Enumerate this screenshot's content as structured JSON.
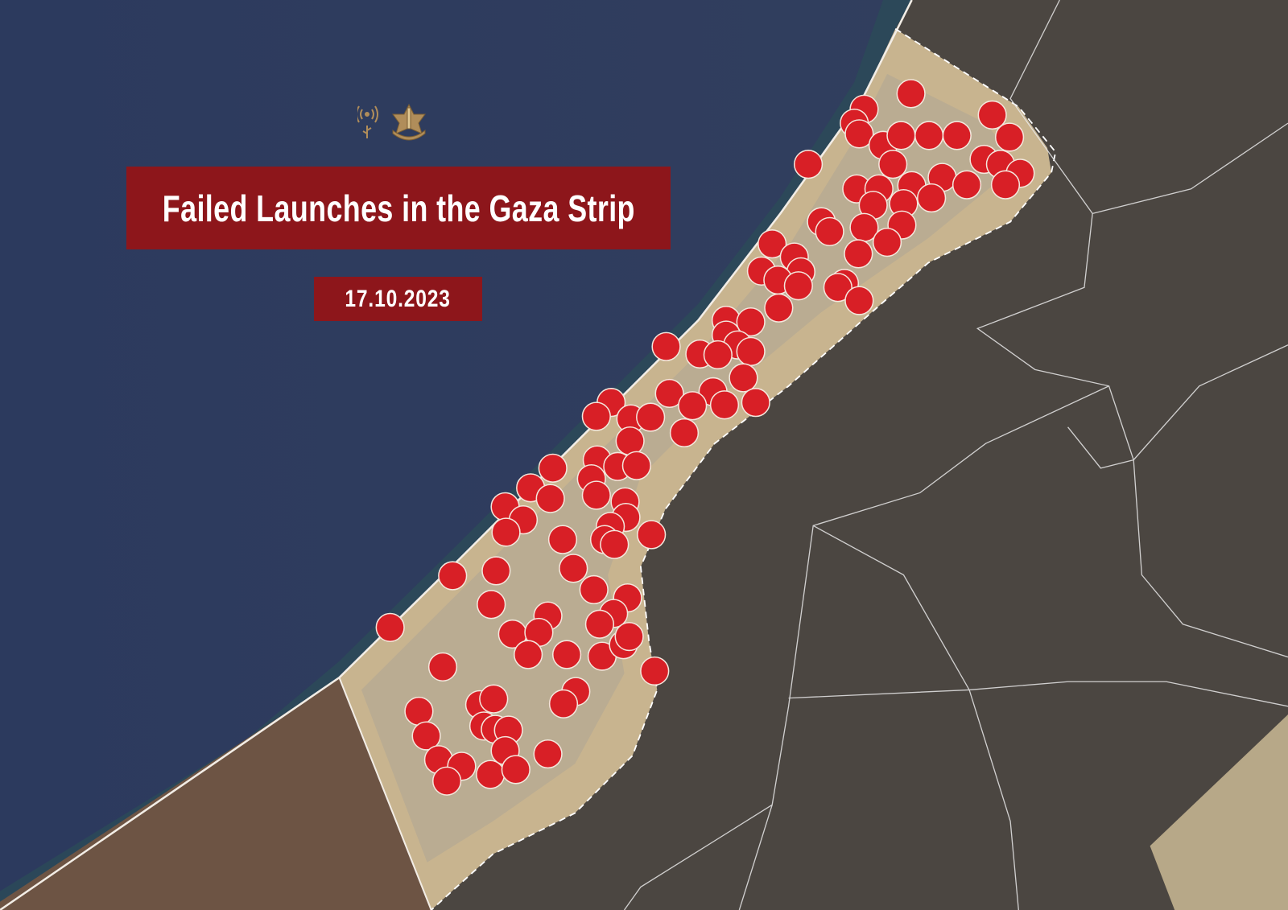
{
  "header": {
    "title": "Failed Launches in the Gaza Strip",
    "date": "17.10.2023"
  },
  "logos": [
    {
      "icon": "spokesperson-unit-antenna-icon",
      "color": "#b08d5a"
    },
    {
      "icon": "idf-emblem-icon",
      "color": "#b08d5a"
    }
  ],
  "map": {
    "type": "satellite",
    "region": "Gaza Strip",
    "marker_shape": "circle",
    "marker_color": "#d81f26",
    "marker_outline": "#f4e6dc",
    "colors": {
      "sea": "#2f3b5c",
      "strip": "#c8b48f",
      "surrounding_land": "#4b4641",
      "southwest_land": "#6d5444",
      "title_box": "#8d161b"
    }
  }
}
